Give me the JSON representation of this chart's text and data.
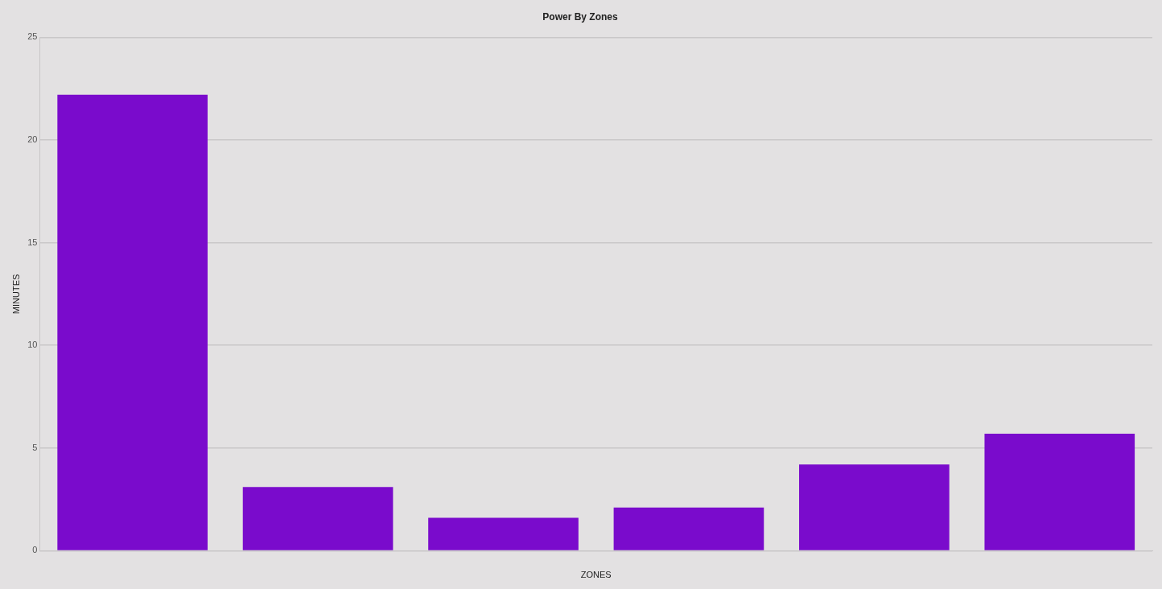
{
  "chart_data": {
    "type": "bar",
    "title": "Power By Zones",
    "xlabel": "ZONES",
    "ylabel": "MINUTES",
    "categories": [
      null,
      null,
      null,
      null,
      null,
      null
    ],
    "values": [
      22.2,
      3.1,
      1.6,
      2.1,
      4.2,
      5.7
    ],
    "color": "#7a0bcc",
    "ylim": [
      0,
      25
    ],
    "yticks": [
      0,
      5,
      10,
      15,
      20,
      25
    ],
    "grid": "y",
    "legend": false
  }
}
